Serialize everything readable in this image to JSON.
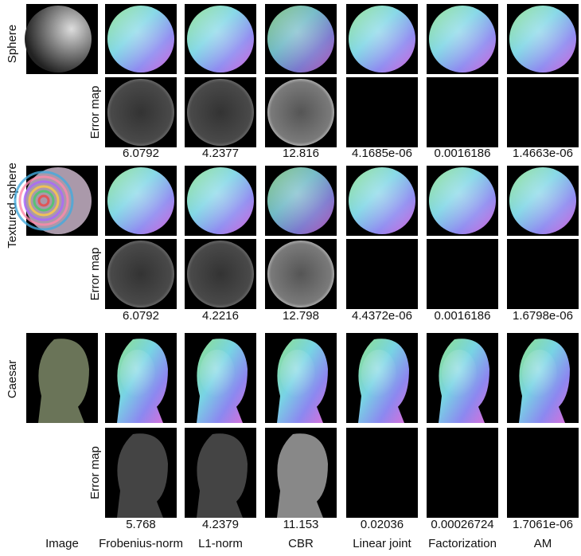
{
  "rows": [
    {
      "label": "Sphere",
      "error_label": "Error map",
      "errors": [
        "6.0792",
        "4.2377",
        "12.816",
        "4.1685e-06",
        "0.0016186",
        "1.4663e-06"
      ]
    },
    {
      "label": "Textured sphere",
      "error_label": "Error map",
      "errors": [
        "6.0792",
        "4.2216",
        "12.798",
        "4.4372e-06",
        "0.0016186",
        "1.6798e-06"
      ]
    },
    {
      "label": "Caesar",
      "error_label": "Error map",
      "errors": [
        "5.768",
        "4.2379",
        "11.153",
        "0.02036",
        "0.00026724",
        "1.7061e-06"
      ]
    }
  ],
  "columns": [
    "Image",
    "Frobenius-norm",
    "L1-norm",
    "CBR",
    "Linear joint",
    "Factorization",
    "AM"
  ]
}
